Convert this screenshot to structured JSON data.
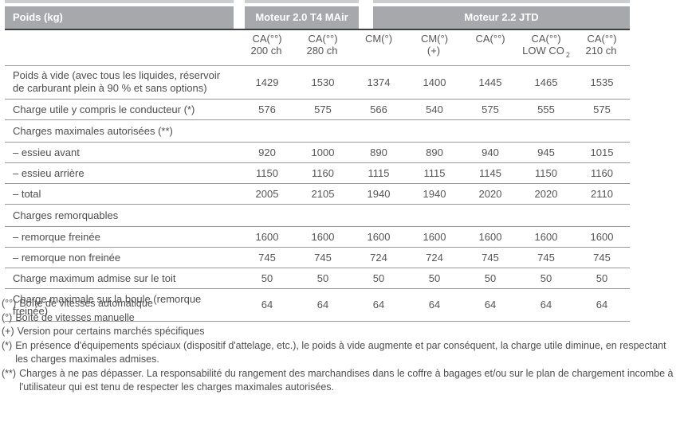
{
  "colors": {
    "header_bar": "#a6a8ab",
    "header_strip": "#cbcdcf",
    "header_text": "#ffffff",
    "body_text": "#4d4d4f",
    "separator_line": "#97999c",
    "header_underline": "#3e3f41"
  },
  "table": {
    "corner_label": "Poids (kg)",
    "groups": [
      {
        "label": "Moteur 2.0 T4 MAir"
      },
      {
        "label": "Moteur 2.2 JTD"
      }
    ],
    "columns": [
      {
        "line1": "CA(°°)",
        "line2": "200 ch"
      },
      {
        "line1": "CA(°°)",
        "line2": "280 ch"
      },
      {
        "line1": "CM(°)",
        "line2": ""
      },
      {
        "line1": "CM(°)",
        "line2": "(+)"
      },
      {
        "line1": "CA(°°)",
        "line2": ""
      },
      {
        "line1": "CA(°°)",
        "line2": "LOW CO",
        "line2_sub": "2"
      },
      {
        "line1": "CA(°°)",
        "line2": "210 ch"
      }
    ],
    "rows": [
      {
        "type": "data",
        "label": "Poids à vide (avec tous les liquides, réservoir de carburant plein à 90 % et sans options)",
        "values": [
          "1429",
          "1530",
          "1374",
          "1400",
          "1445",
          "1465",
          "1535"
        ]
      },
      {
        "type": "data",
        "label": "Charge utile y compris le conducteur (*)",
        "values": [
          "576",
          "575",
          "566",
          "540",
          "575",
          "555",
          "575"
        ]
      },
      {
        "type": "section",
        "label": "Charges maximales autorisées (**)"
      },
      {
        "type": "data",
        "label": "– essieu avant",
        "values": [
          "920",
          "1000",
          "890",
          "890",
          "940",
          "945",
          "1015"
        ]
      },
      {
        "type": "data",
        "label": "– essieu arrière",
        "values": [
          "1150",
          "1160",
          "1115",
          "1115",
          "1145",
          "1150",
          "1160"
        ]
      },
      {
        "type": "data",
        "label": "– total",
        "values": [
          "2005",
          "2105",
          "1940",
          "1940",
          "2020",
          "2020",
          "2110"
        ]
      },
      {
        "type": "section",
        "label": "Charges remorquables"
      },
      {
        "type": "data",
        "label": "– remorque freinée",
        "values": [
          "1600",
          "1600",
          "1600",
          "1600",
          "1600",
          "1600",
          "1600"
        ]
      },
      {
        "type": "data",
        "label": "– remorque non freinée",
        "values": [
          "745",
          "745",
          "724",
          "724",
          "745",
          "745",
          "745"
        ]
      },
      {
        "type": "data",
        "label": "Charge maximum admise sur le toit",
        "values": [
          "50",
          "50",
          "50",
          "50",
          "50",
          "50",
          "50"
        ]
      },
      {
        "type": "data",
        "label": "Charge maximale sur la boule (remorque freinée)",
        "values": [
          "64",
          "64",
          "64",
          "64",
          "64",
          "64",
          "64"
        ]
      }
    ]
  },
  "footnotes": [
    {
      "marker": "(°°)",
      "text": "Boîte de vitesses automatique"
    },
    {
      "marker": "(°)",
      "text": "Boîte de vitesses manuelle"
    },
    {
      "marker": "(+)",
      "text": "Version pour certains marchés spécifiques"
    },
    {
      "marker": "(*)",
      "text": "En présence d'équipements spéciaux (dispositif d'attelage, etc.), le poids à vide augmente et par conséquent, la charge utile diminue, en respectant les charges maximales admises."
    },
    {
      "marker": "(**)",
      "text": "Charges à ne pas dépasser. La responsabilité du rangement des marchandises dans le coffre à bagages et/ou sur le plan de chargement incombe à l'utilisateur qui est tenu de respecter les charges maximales autorisées."
    }
  ]
}
